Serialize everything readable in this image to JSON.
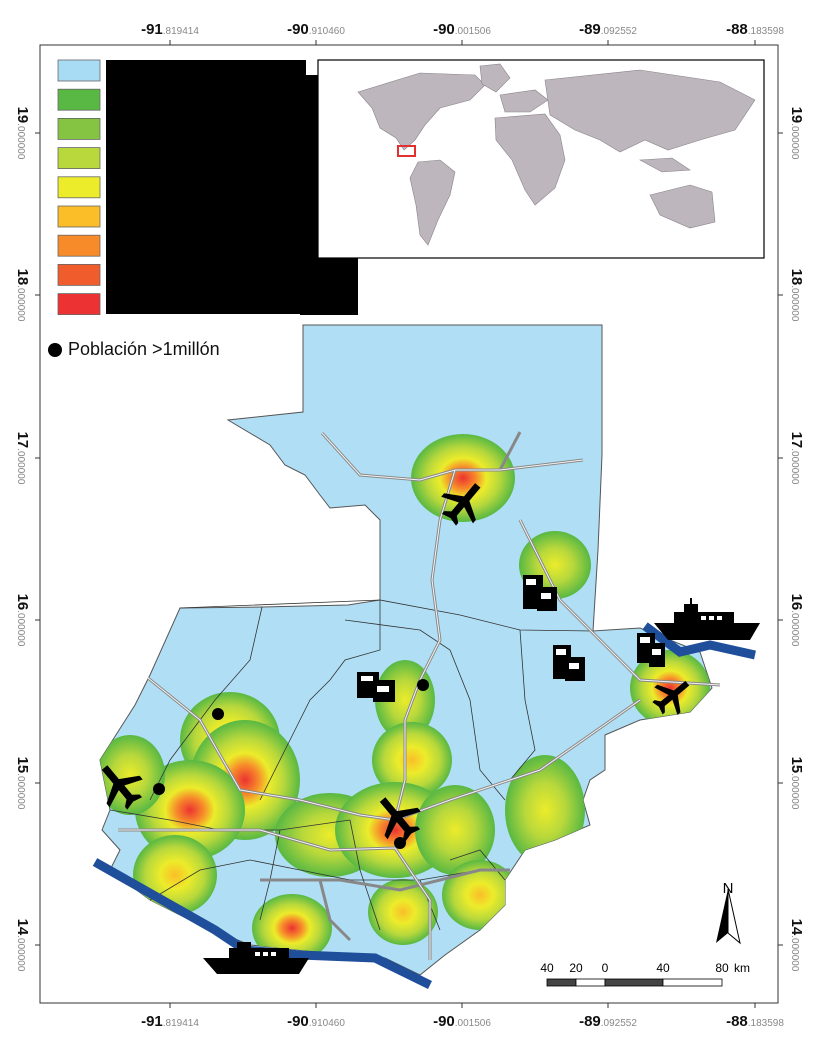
{
  "axes": {
    "x_ticks": [
      {
        "big": "-91",
        "small": ".819414"
      },
      {
        "big": "-90",
        "small": ".910460"
      },
      {
        "big": "-90",
        "small": ".001506"
      },
      {
        "big": "-89",
        "small": ".092552"
      },
      {
        "big": "-88",
        "small": ".183598"
      }
    ],
    "y_ticks": [
      {
        "big": "19",
        "small": ".000000"
      },
      {
        "big": "18",
        "small": ".000000"
      },
      {
        "big": "17",
        "small": ".000000"
      },
      {
        "big": "16",
        "small": ".000000"
      },
      {
        "big": "15",
        "small": ".000000"
      },
      {
        "big": "14",
        "small": ".000000"
      }
    ]
  },
  "legend": {
    "swatch_colors": [
      "#a8dcf4",
      "#58b843",
      "#84c442",
      "#b8d83c",
      "#ecec2a",
      "#fbbe28",
      "#f78b2a",
      "#f05c2c",
      "#ec3232"
    ],
    "population_label": "Población >1millón"
  },
  "colors": {
    "land": "#b0dff5",
    "route": "#9a9a9a",
    "coast": "#1f4e9a",
    "inset_land": "#bdb6bd",
    "inset_box": "#e03030"
  },
  "icons": [
    "airplane-icon",
    "ship-icon",
    "warehouse-icon",
    "north-arrow-icon"
  ],
  "north_label": "N",
  "scale_bar": {
    "labels": [
      "40",
      "20",
      "0",
      "40",
      "80"
    ],
    "unit": "km"
  }
}
